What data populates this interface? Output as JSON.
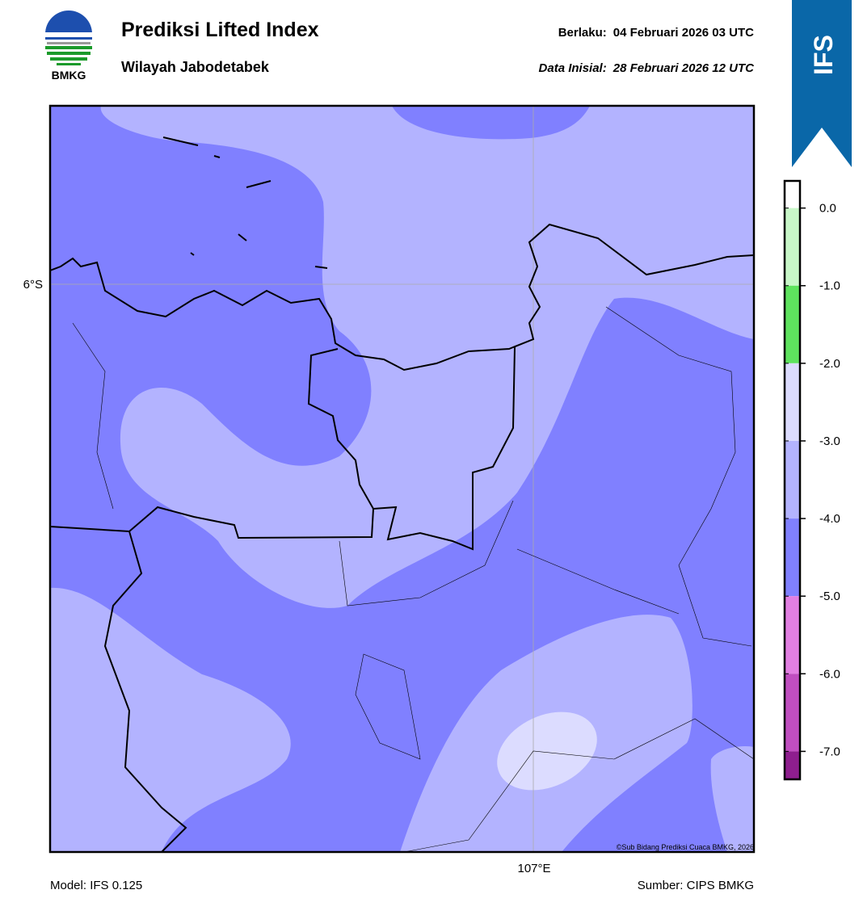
{
  "header": {
    "logo_text": "BMKG",
    "title": "Prediksi Lifted Index",
    "subtitle": "Wilayah Jabodetabek",
    "valid_label": "Berlaku:",
    "valid_time": "04 Februari 2026 03 UTC",
    "init_label": "Data Inisial:",
    "init_time": "28 Februari 2026 12 UTC",
    "model_badge": "IFS"
  },
  "map": {
    "lat_label": "6°S",
    "lon_label": "107°E",
    "copyright": "©Sub Bidang Prediksi Cuaca BMKG, 2026"
  },
  "colorbar": {
    "lim": [
      -7.36,
      0.35
    ],
    "ticks": [
      {
        "value": 0,
        "label": "0.0"
      },
      {
        "value": -1,
        "label": "-1.0"
      },
      {
        "value": -2,
        "label": "-2.0"
      },
      {
        "value": -3,
        "label": "-3.0"
      },
      {
        "value": -4,
        "label": "-4.0"
      },
      {
        "value": -5,
        "label": "-5.0"
      },
      {
        "value": -6,
        "label": "-6.0"
      },
      {
        "value": -7,
        "label": "-7.0"
      }
    ],
    "colors": [
      "#ffffff",
      "#c8f7c8",
      "#5ee35e",
      "#dcdcff",
      "#b3b3ff",
      "#8080ff",
      "#e27fe2",
      "#c04ec0",
      "#8e1e8e"
    ]
  },
  "footer": {
    "model": "Model: IFS 0.125",
    "source": "Sumber: CIPS BMKG"
  }
}
